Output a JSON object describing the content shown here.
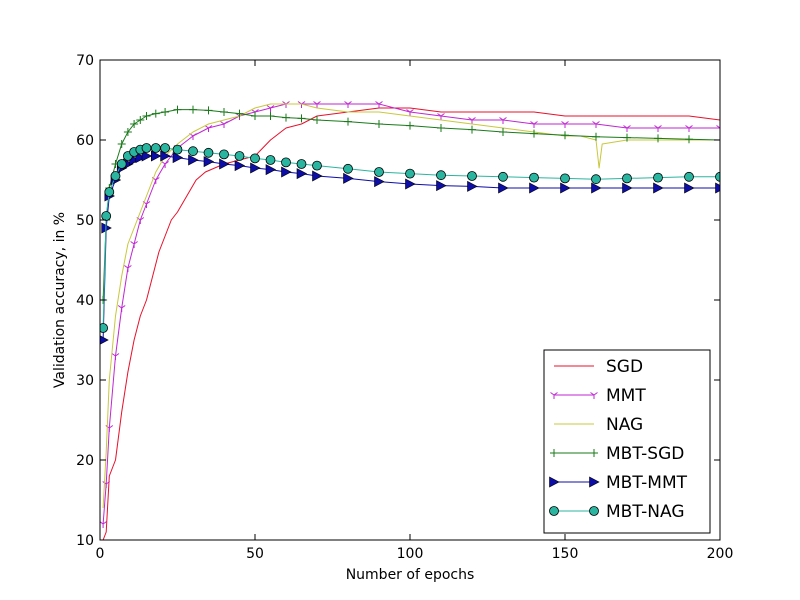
{
  "chart_data": {
    "type": "line",
    "title": "",
    "xlabel": "Number of epochs",
    "ylabel": "Validation accuracy, in %",
    "xlim": [
      0,
      200
    ],
    "ylim": [
      10,
      70
    ],
    "xticks": [
      0,
      50,
      100,
      150,
      200
    ],
    "yticks": [
      10,
      20,
      30,
      40,
      50,
      60,
      70
    ],
    "grid": false,
    "legend_position": "lower-right",
    "series": [
      {
        "name": "SGD",
        "color": "#e8102a",
        "marker": "none",
        "points": [
          [
            1,
            10
          ],
          [
            2,
            11
          ],
          [
            3,
            18
          ],
          [
            5,
            20
          ],
          [
            7,
            26
          ],
          [
            9,
            31
          ],
          [
            11,
            35
          ],
          [
            13,
            38
          ],
          [
            15,
            40
          ],
          [
            17,
            43
          ],
          [
            19,
            46
          ],
          [
            21,
            48
          ],
          [
            23,
            50
          ],
          [
            25,
            51
          ],
          [
            28,
            53
          ],
          [
            31,
            55
          ],
          [
            34,
            56
          ],
          [
            37,
            56.5
          ],
          [
            40,
            57
          ],
          [
            45,
            57.5
          ],
          [
            50,
            58
          ],
          [
            55,
            60
          ],
          [
            60,
            61.5
          ],
          [
            65,
            62
          ],
          [
            70,
            63
          ],
          [
            80,
            63.5
          ],
          [
            90,
            64
          ],
          [
            100,
            64
          ],
          [
            110,
            63.5
          ],
          [
            120,
            63.5
          ],
          [
            130,
            63.5
          ],
          [
            140,
            63.5
          ],
          [
            150,
            63
          ],
          [
            160,
            63
          ],
          [
            170,
            63
          ],
          [
            180,
            63
          ],
          [
            190,
            63
          ],
          [
            200,
            62.5
          ]
        ]
      },
      {
        "name": "MMT",
        "color": "#c026d3",
        "marker": "tri",
        "points": [
          [
            1,
            12
          ],
          [
            2,
            17
          ],
          [
            3,
            24
          ],
          [
            5,
            33
          ],
          [
            7,
            39
          ],
          [
            9,
            44
          ],
          [
            11,
            47
          ],
          [
            13,
            50
          ],
          [
            15,
            52
          ],
          [
            18,
            55
          ],
          [
            21,
            57
          ],
          [
            25,
            59
          ],
          [
            30,
            60.5
          ],
          [
            35,
            61.5
          ],
          [
            40,
            62
          ],
          [
            45,
            63
          ],
          [
            50,
            63.5
          ],
          [
            55,
            64
          ],
          [
            60,
            64.5
          ],
          [
            65,
            64.5
          ],
          [
            70,
            64.5
          ],
          [
            80,
            64.5
          ],
          [
            90,
            64.5
          ],
          [
            100,
            63.5
          ],
          [
            110,
            63
          ],
          [
            120,
            62.5
          ],
          [
            130,
            62.5
          ],
          [
            140,
            62
          ],
          [
            150,
            62
          ],
          [
            160,
            62
          ],
          [
            170,
            61.5
          ],
          [
            180,
            61.5
          ],
          [
            190,
            61.5
          ],
          [
            200,
            61.5
          ]
        ]
      },
      {
        "name": "NAG",
        "color": "#c8c83c",
        "marker": "none",
        "points": [
          [
            1,
            14
          ],
          [
            2,
            21
          ],
          [
            3,
            30
          ],
          [
            5,
            38
          ],
          [
            7,
            43
          ],
          [
            9,
            47
          ],
          [
            11,
            49
          ],
          [
            13,
            51
          ],
          [
            15,
            53
          ],
          [
            18,
            56
          ],
          [
            21,
            58
          ],
          [
            25,
            59.5
          ],
          [
            30,
            61
          ],
          [
            35,
            62
          ],
          [
            40,
            62.5
          ],
          [
            45,
            63
          ],
          [
            50,
            64
          ],
          [
            55,
            64.5
          ],
          [
            60,
            64.5
          ],
          [
            65,
            64.5
          ],
          [
            70,
            64
          ],
          [
            80,
            63.5
          ],
          [
            90,
            63.5
          ],
          [
            100,
            63
          ],
          [
            110,
            62.5
          ],
          [
            120,
            62
          ],
          [
            130,
            61.5
          ],
          [
            140,
            61
          ],
          [
            150,
            60.5
          ],
          [
            155,
            60.5
          ],
          [
            160,
            60
          ],
          [
            161,
            56.5
          ],
          [
            162,
            59.5
          ],
          [
            170,
            60
          ],
          [
            180,
            60
          ],
          [
            190,
            60
          ],
          [
            200,
            60
          ]
        ]
      },
      {
        "name": "MBT-SGD",
        "color": "#1a7a1a",
        "marker": "plus",
        "points": [
          [
            1,
            40
          ],
          [
            2,
            50
          ],
          [
            3,
            54
          ],
          [
            5,
            57
          ],
          [
            7,
            59.5
          ],
          [
            9,
            61
          ],
          [
            11,
            62
          ],
          [
            13,
            62.5
          ],
          [
            15,
            63
          ],
          [
            18,
            63.3
          ],
          [
            21,
            63.5
          ],
          [
            25,
            63.8
          ],
          [
            30,
            63.8
          ],
          [
            35,
            63.7
          ],
          [
            40,
            63.5
          ],
          [
            45,
            63.3
          ],
          [
            50,
            63
          ],
          [
            55,
            63
          ],
          [
            60,
            62.8
          ],
          [
            65,
            62.7
          ],
          [
            70,
            62.5
          ],
          [
            80,
            62.3
          ],
          [
            90,
            62
          ],
          [
            100,
            61.8
          ],
          [
            110,
            61.5
          ],
          [
            120,
            61.3
          ],
          [
            130,
            61
          ],
          [
            140,
            60.8
          ],
          [
            150,
            60.6
          ],
          [
            160,
            60.4
          ],
          [
            170,
            60.3
          ],
          [
            180,
            60.2
          ],
          [
            190,
            60.1
          ],
          [
            200,
            60
          ]
        ]
      },
      {
        "name": "MBT-MMT",
        "color": "#0d0da8",
        "marker": "triangle-right",
        "points": [
          [
            1,
            35
          ],
          [
            2,
            49
          ],
          [
            3,
            53
          ],
          [
            5,
            55
          ],
          [
            7,
            56.5
          ],
          [
            9,
            57
          ],
          [
            11,
            57.5
          ],
          [
            13,
            57.8
          ],
          [
            15,
            58
          ],
          [
            18,
            58
          ],
          [
            21,
            58
          ],
          [
            25,
            57.8
          ],
          [
            30,
            57.5
          ],
          [
            35,
            57.3
          ],
          [
            40,
            57
          ],
          [
            45,
            56.8
          ],
          [
            50,
            56.5
          ],
          [
            55,
            56.3
          ],
          [
            60,
            56
          ],
          [
            65,
            55.8
          ],
          [
            70,
            55.5
          ],
          [
            80,
            55.2
          ],
          [
            90,
            54.8
          ],
          [
            100,
            54.5
          ],
          [
            110,
            54.3
          ],
          [
            120,
            54.2
          ],
          [
            130,
            54
          ],
          [
            140,
            54
          ],
          [
            150,
            54
          ],
          [
            160,
            54
          ],
          [
            170,
            54
          ],
          [
            180,
            54
          ],
          [
            190,
            54
          ],
          [
            200,
            54
          ]
        ]
      },
      {
        "name": "MBT-NAG",
        "color": "#2ab5a0",
        "marker": "circle",
        "points": [
          [
            1,
            36.5
          ],
          [
            2,
            50.5
          ],
          [
            3,
            53.5
          ],
          [
            5,
            55.5
          ],
          [
            7,
            57
          ],
          [
            9,
            58
          ],
          [
            11,
            58.5
          ],
          [
            13,
            58.8
          ],
          [
            15,
            59
          ],
          [
            18,
            59
          ],
          [
            21,
            59
          ],
          [
            25,
            58.8
          ],
          [
            30,
            58.6
          ],
          [
            35,
            58.4
          ],
          [
            40,
            58.2
          ],
          [
            45,
            58
          ],
          [
            50,
            57.7
          ],
          [
            55,
            57.5
          ],
          [
            60,
            57.2
          ],
          [
            65,
            57
          ],
          [
            70,
            56.8
          ],
          [
            80,
            56.4
          ],
          [
            90,
            56
          ],
          [
            100,
            55.8
          ],
          [
            110,
            55.6
          ],
          [
            120,
            55.5
          ],
          [
            130,
            55.4
          ],
          [
            140,
            55.3
          ],
          [
            150,
            55.2
          ],
          [
            160,
            55.1
          ],
          [
            170,
            55.2
          ],
          [
            180,
            55.3
          ],
          [
            190,
            55.4
          ],
          [
            200,
            55.4
          ]
        ]
      }
    ]
  }
}
